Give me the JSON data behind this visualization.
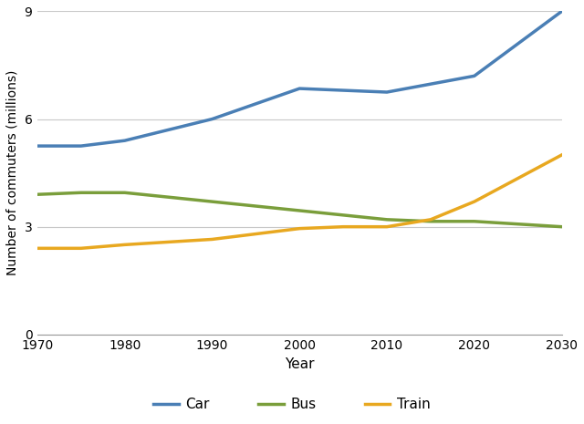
{
  "years_car": [
    1970,
    1975,
    1980,
    1990,
    2000,
    2010,
    2020,
    2030
  ],
  "values_car": [
    5.25,
    5.25,
    5.4,
    6.0,
    6.85,
    6.75,
    7.2,
    9.0
  ],
  "years_bus": [
    1970,
    1975,
    1980,
    1990,
    2000,
    2010,
    2015,
    2020,
    2030
  ],
  "values_bus": [
    3.9,
    3.95,
    3.95,
    3.7,
    3.45,
    3.2,
    3.15,
    3.15,
    3.0
  ],
  "years_train": [
    1970,
    1975,
    1980,
    1990,
    2000,
    2005,
    2010,
    2015,
    2020,
    2030
  ],
  "values_train": [
    2.4,
    2.4,
    2.5,
    2.65,
    2.95,
    3.0,
    3.0,
    3.2,
    3.7,
    5.0
  ],
  "car_color": "#4a7fb5",
  "bus_color": "#7a9e3b",
  "train_color": "#e8a820",
  "xlabel": "Year",
  "ylabel": "Number of commuters (millions)",
  "ylim": [
    0,
    9
  ],
  "xlim": [
    1970,
    2030
  ],
  "yticks": [
    0,
    3,
    6,
    9
  ],
  "xticks": [
    1970,
    1980,
    1990,
    2000,
    2010,
    2020,
    2030
  ],
  "legend_labels": [
    "Car",
    "Bus",
    "Train"
  ],
  "line_width": 2.5,
  "background_color": "#ffffff",
  "grid_color": "#c8c8c8"
}
